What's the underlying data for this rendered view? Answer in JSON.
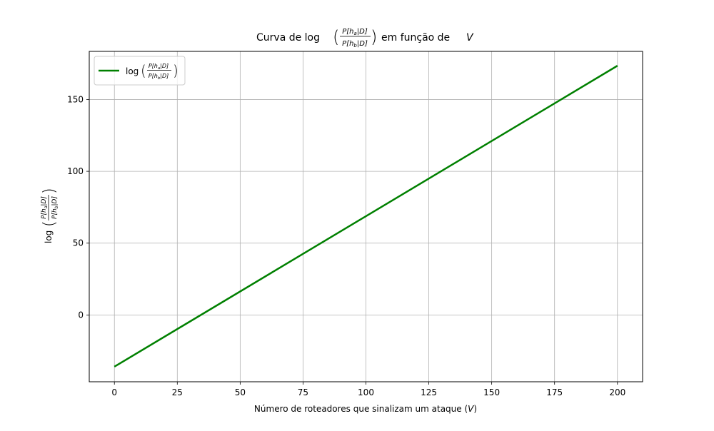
{
  "chart_data": {
    "type": "line",
    "title": {
      "prefix": "Curva de log",
      "frac_num": "P[h",
      "frac_num_sub": "a",
      "frac_num_end": "|D]",
      "frac_den": "P[h",
      "frac_den_sub": "b",
      "frac_den_end": "|D]",
      "suffix": "em função de",
      "var": "V"
    },
    "xlabel": {
      "text": "Número de roteadores que sinalizam um ataque (",
      "var": "V",
      "close": ")"
    },
    "ylabel": {
      "prefix": "log",
      "frac_num": "P[h",
      "frac_num_sub": "a",
      "frac_num_end": "|D]",
      "frac_den": "P[h",
      "frac_den_sub": "b",
      "frac_den_end": "|D]"
    },
    "xlim": [
      -10,
      210
    ],
    "ylim": [
      -46.5,
      183.5
    ],
    "xticks": [
      0,
      25,
      50,
      75,
      100,
      125,
      150,
      175,
      200
    ],
    "yticks": [
      0,
      50,
      100,
      150
    ],
    "grid": true,
    "legend_position": "top-left",
    "series": [
      {
        "name": {
          "prefix": "log",
          "frac_num": "P[h",
          "frac_num_sub": "a",
          "frac_num_end": "|D]",
          "frac_den": "P[h",
          "frac_den_sub": "b",
          "frac_den_end": "|D]"
        },
        "color": "#008000",
        "x": [
          0,
          200
        ],
        "y": [
          -36,
          173.5
        ]
      }
    ]
  }
}
